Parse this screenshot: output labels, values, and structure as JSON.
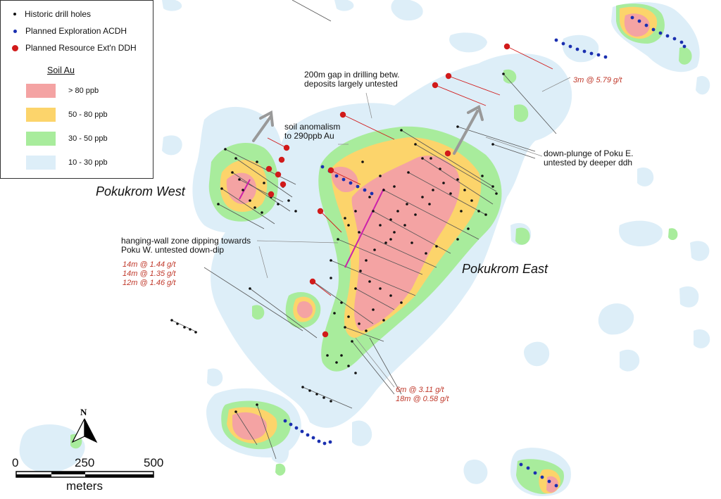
{
  "legend": {
    "items": [
      {
        "label": "Historic drill holes",
        "color": "#111111"
      },
      {
        "label": "Planned Exploration ACDH",
        "color": "#1a2fb0"
      },
      {
        "label": "Planned Resource Ext'n DDH",
        "color": "#d11a1a"
      }
    ],
    "soil_title": "Soil Au",
    "soil_classes": [
      {
        "label": "> 80 ppb",
        "color": "#f4a3a3"
      },
      {
        "label": "50 - 80 ppb",
        "color": "#fcd46b"
      },
      {
        "label": "30 - 50 ppb",
        "color": "#a8ec9c"
      },
      {
        "label": "10 - 30 ppb",
        "color": "#ddeef8"
      }
    ]
  },
  "deposits": {
    "west": "Pokukrom West",
    "east": "Pokukrom East"
  },
  "annotations": {
    "gap": [
      "200m gap in drilling betw.",
      "deposits largely untested"
    ],
    "soil": [
      "soil anomalism",
      "to 290ppb Au"
    ],
    "plunge": [
      "down-plunge of Poku E.",
      "untested by deeper ddh"
    ],
    "hanging": [
      "hanging-wall zone dipping towards",
      "Poku W. untested down-dip"
    ]
  },
  "intercepts": {
    "ne": "3m @ 5.79 g/t",
    "west": [
      "14m @ 1.44 g/t",
      "14m @ 1.35 g/t",
      "12m @ 1.46 g/t"
    ],
    "south": [
      "6m @ 3.11 g/t",
      "18m @ 0.58 g/t"
    ]
  },
  "north_arrow": "N",
  "scale": {
    "ticks": [
      "0",
      "250",
      "500"
    ],
    "unit": "meters"
  }
}
